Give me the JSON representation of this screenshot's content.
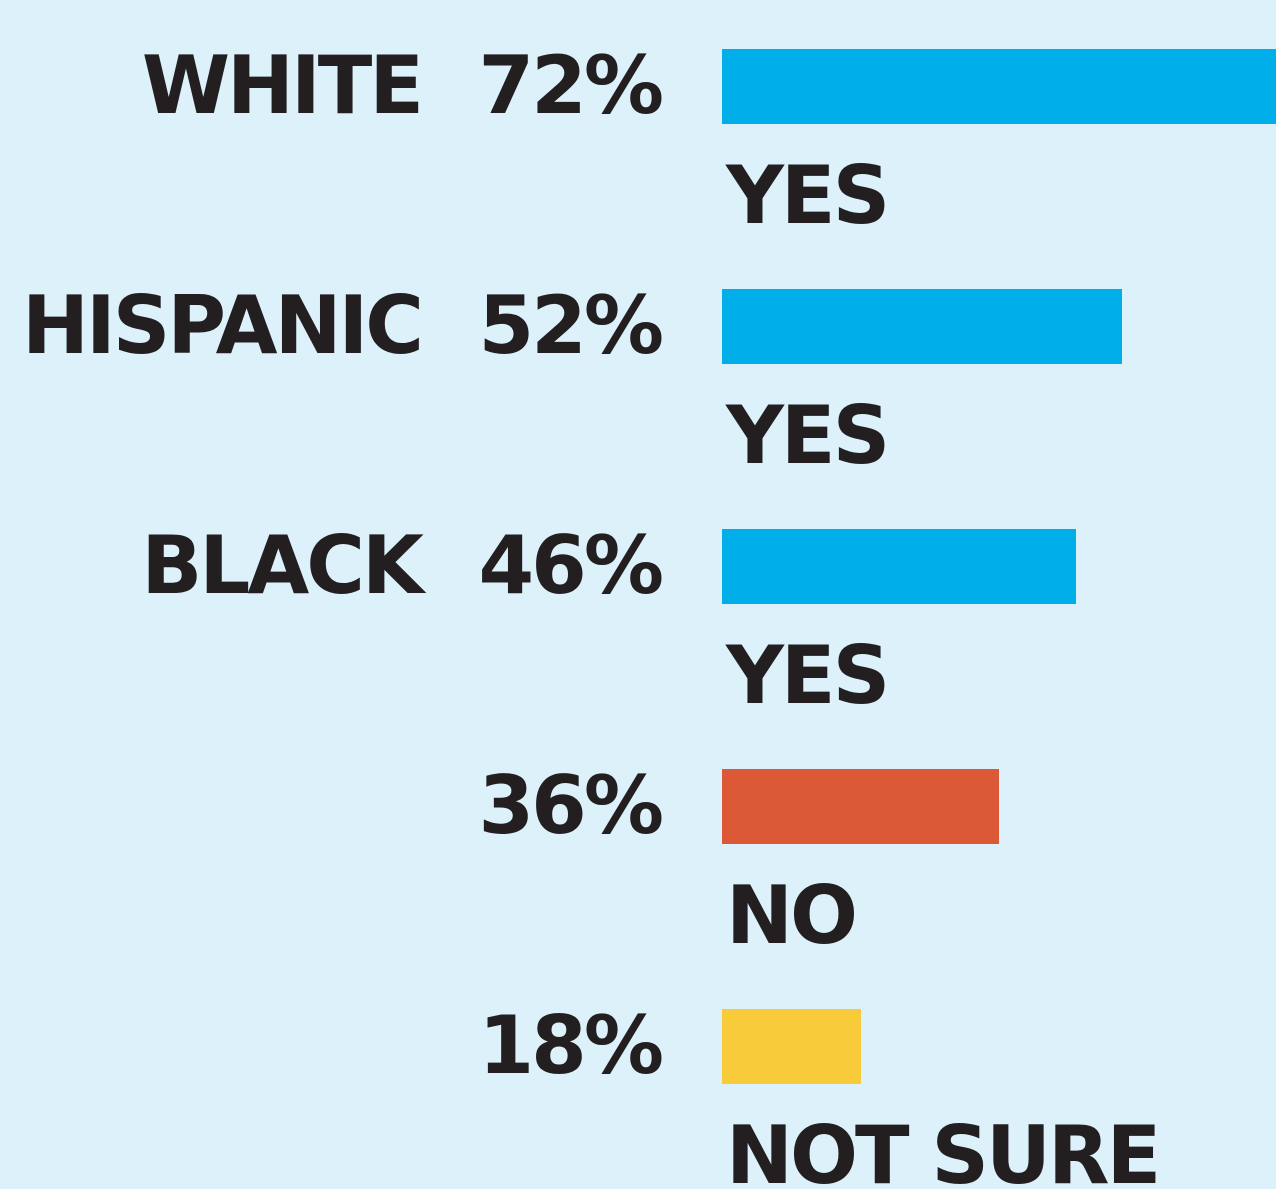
{
  "chart_data": {
    "type": "bar",
    "orientation": "horizontal",
    "rows": [
      {
        "group": "WHITE",
        "answer": "YES",
        "value": 72,
        "label": "72%",
        "color": "#00aeea"
      },
      {
        "group": "HISPANIC",
        "answer": "YES",
        "value": 52,
        "label": "52%",
        "color": "#00aeea"
      },
      {
        "group": "BLACK",
        "answer": "YES",
        "value": 46,
        "label": "46%",
        "color": "#00aeea"
      },
      {
        "group": "",
        "answer": "NO",
        "value": 36,
        "label": "36%",
        "color": "#dc5938"
      },
      {
        "group": "",
        "answer": "NOT SURE",
        "value": 18,
        "label": "18%",
        "color": "#f7cb3a"
      }
    ]
  },
  "colors": {
    "background": "#dcf1fa",
    "text": "#231f20"
  }
}
